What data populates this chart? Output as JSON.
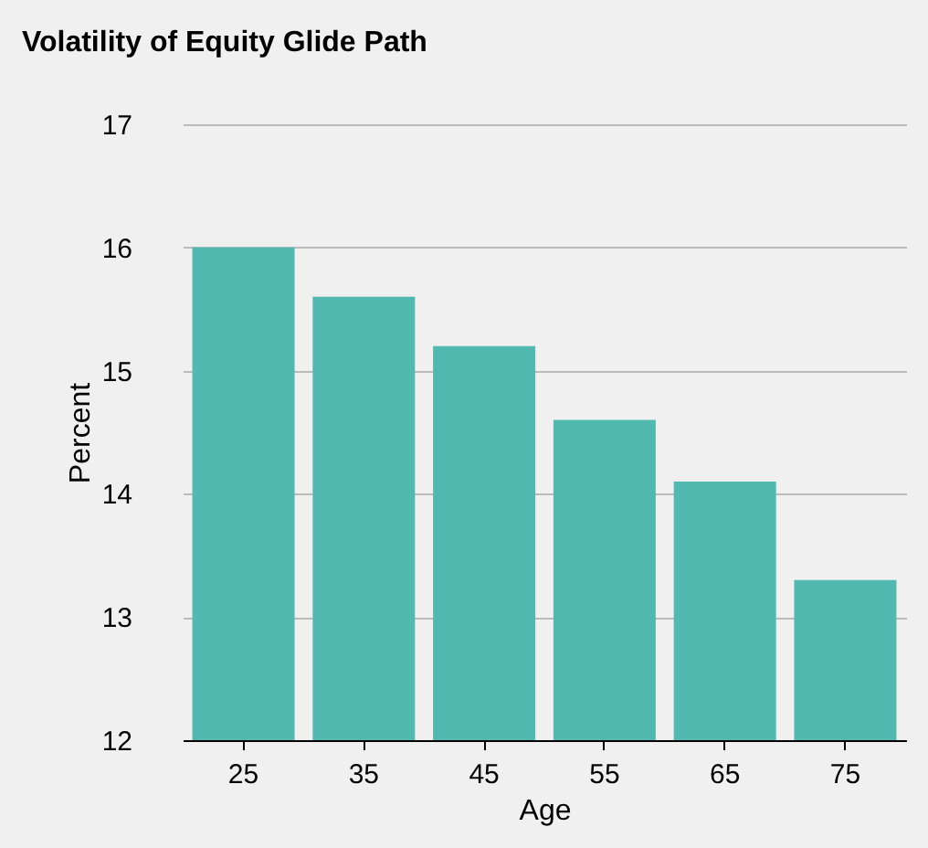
{
  "chart_data": {
    "type": "bar",
    "title": "Volatility of Equity Glide Path",
    "xlabel": "Age",
    "ylabel": "Percent",
    "categories": [
      "25",
      "35",
      "45",
      "55",
      "65",
      "75"
    ],
    "values": [
      16.0,
      15.6,
      15.2,
      14.6,
      14.1,
      13.3
    ],
    "color": "#52b9b0",
    "ylim": [
      12,
      17
    ],
    "yticks": [
      12,
      13,
      14,
      15,
      16,
      17
    ],
    "grid": "y"
  }
}
